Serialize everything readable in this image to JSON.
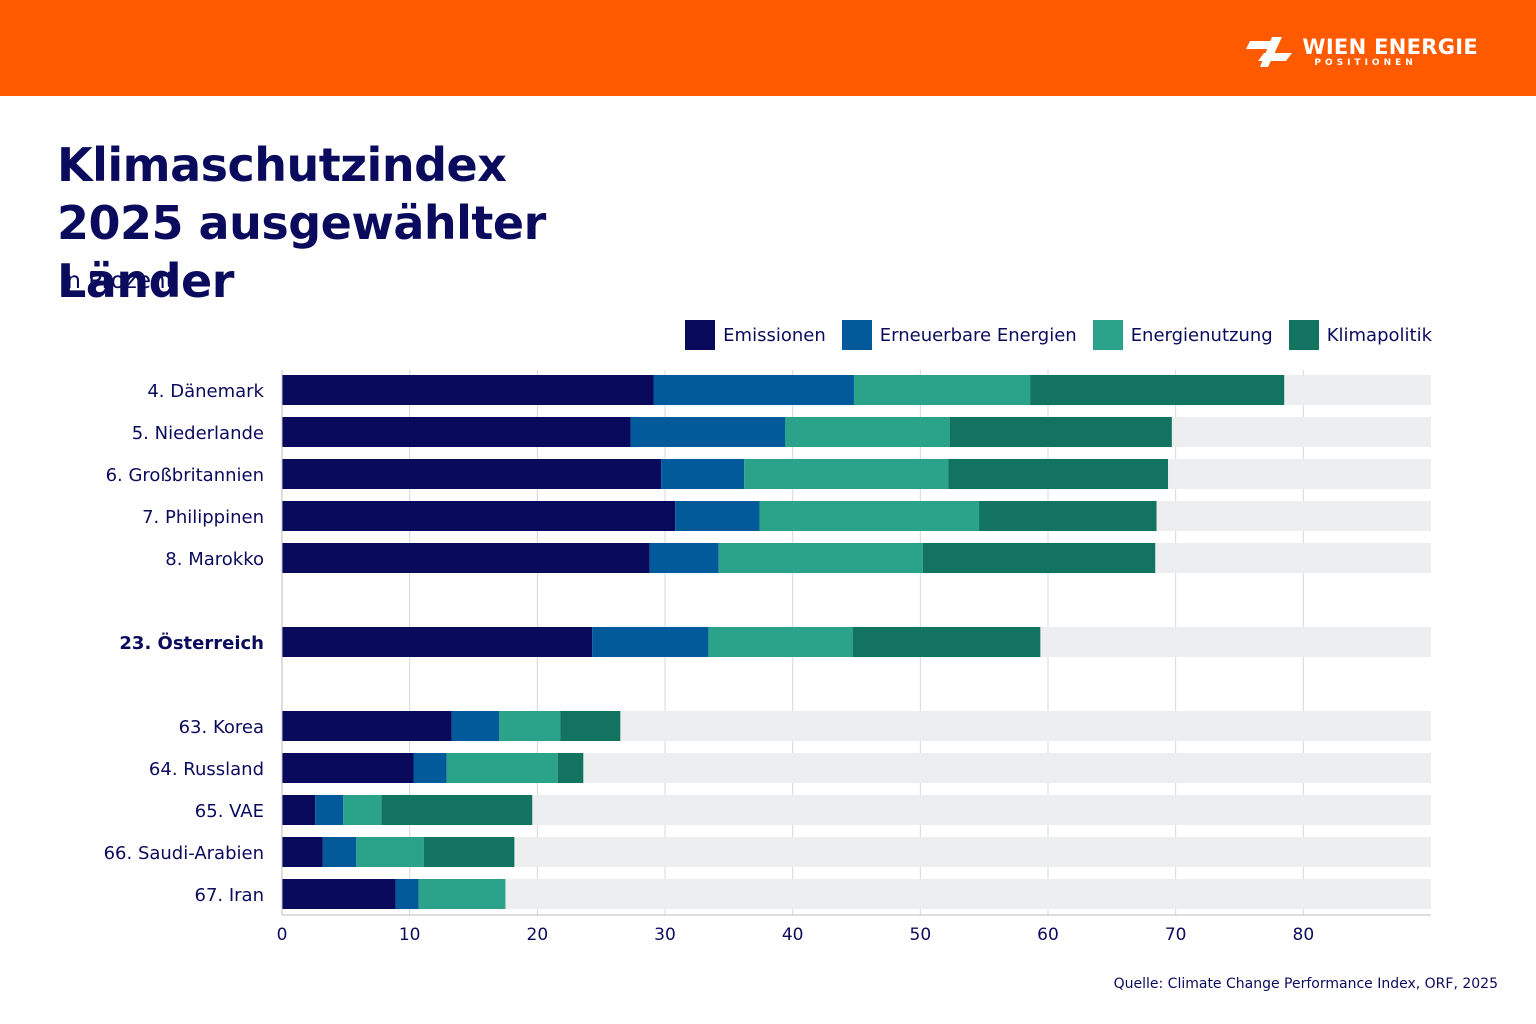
{
  "header": {
    "brand_name": "WIEN ENERGIE",
    "brand_sub": "POSITIONEN",
    "bar_color": "#ff5a00"
  },
  "title": "Klimaschutzindex 2025 ausgewählter Länder",
  "subtitle": "in Prozent",
  "source": "Quelle: Climate Change Performance Index, ORF, 2025",
  "chart_data": {
    "type": "bar",
    "orientation": "horizontal",
    "stacked": true,
    "title": "Klimaschutzindex 2025 ausgewählter Länder",
    "subtitle": "in Prozent",
    "xlim": [
      0,
      90
    ],
    "xticks": [
      0,
      10,
      20,
      30,
      40,
      50,
      60,
      70,
      80
    ],
    "grid": true,
    "legend_position": "top-right",
    "background_bar_color": "#eceef0",
    "categories": [
      "4. Dänemark",
      "5. Niederlande",
      "6. Großbritannien",
      "7. Philippinen",
      "8. Marokko",
      "23. Österreich",
      "63. Korea",
      "64. Russland",
      "65. VAE",
      "66. Saudi-Arabien",
      "67. Iran"
    ],
    "highlight": "23. Österreich",
    "series": [
      {
        "name": "Emissionen",
        "color": "#0a0a5c",
        "values": [
          29.1,
          27.3,
          29.7,
          30.8,
          28.8,
          24.3,
          13.3,
          10.3,
          2.6,
          3.2,
          8.9
        ]
      },
      {
        "name": "Erneuerbare Energien",
        "color": "#025a9a",
        "values": [
          15.7,
          12.1,
          6.5,
          6.6,
          5.4,
          9.1,
          3.7,
          2.6,
          2.2,
          2.6,
          1.8
        ]
      },
      {
        "name": "Energienutzung",
        "color": "#2aa38a",
        "values": [
          13.8,
          12.9,
          16.0,
          17.2,
          16.0,
          11.3,
          4.8,
          8.7,
          3.0,
          5.3,
          6.8
        ]
      },
      {
        "name": "Klimapolitik",
        "color": "#127360",
        "values": [
          19.9,
          17.4,
          17.2,
          13.9,
          18.2,
          14.7,
          4.7,
          2.0,
          11.8,
          7.1,
          0
        ]
      }
    ]
  }
}
